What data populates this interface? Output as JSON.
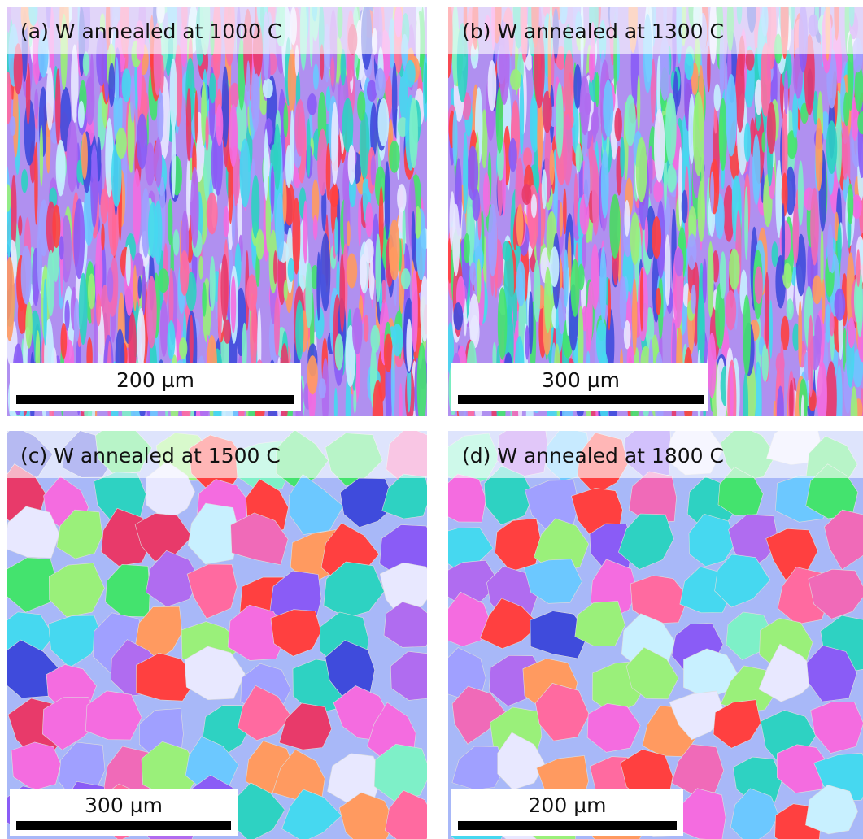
{
  "panels": [
    {
      "label": "(a) W annealed at 1000 C",
      "scale": "200 µm"
    },
    {
      "label": "(b) W annealed at 1300 C",
      "scale": "300 µm"
    },
    {
      "label": "(c) W annealed at 1500 C",
      "scale": "300 µm"
    },
    {
      "label": "(d) W annealed at 1800 C",
      "scale": "200 µm"
    }
  ]
}
